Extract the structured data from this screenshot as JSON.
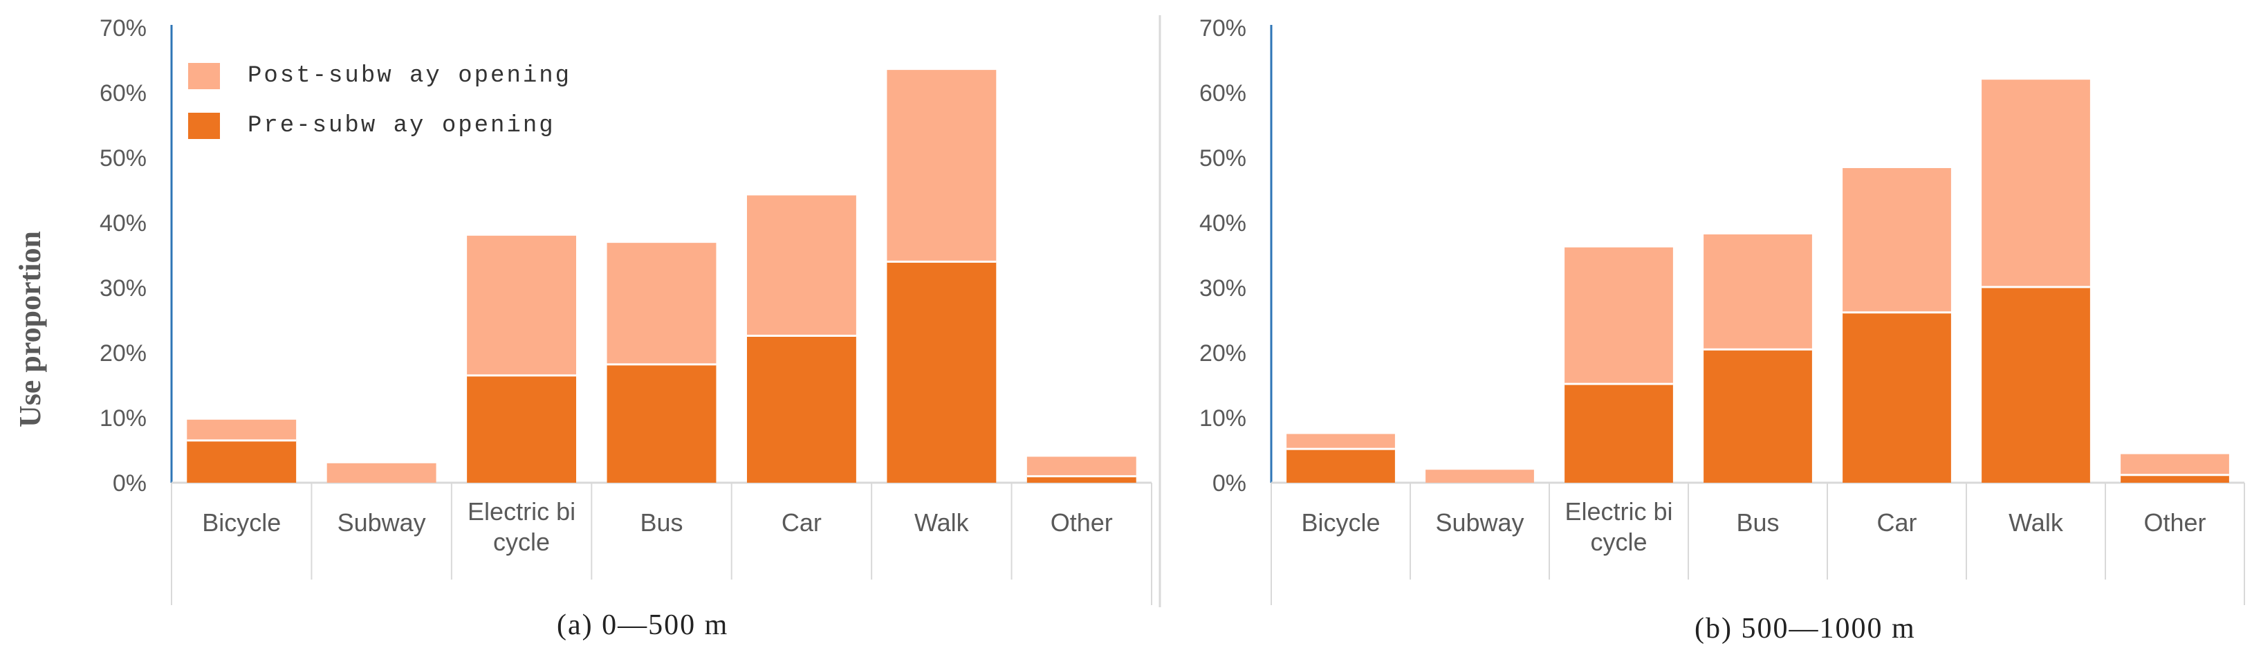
{
  "y_axis_label": "Use proportion",
  "colors": {
    "post": "#FDAE8A",
    "pre": "#ED7420",
    "axis": "#2E75B6",
    "grid": "#D9D9D9",
    "tick_text": "#595959"
  },
  "legend": [
    {
      "label": "Post-subw ay opening",
      "color": "#FDAE8A"
    },
    {
      "label": "Pre-subw ay opening",
      "color": "#ED7420"
    }
  ],
  "chart_data": [
    {
      "type": "bar",
      "stacked": true,
      "caption": "(a) 0—500 m",
      "categories": [
        "Bicycle",
        "Subway",
        "Electric bi cycle",
        "Bus",
        "Car",
        "Walk",
        "Other"
      ],
      "y_ticks": [
        "0%",
        "10%",
        "20%",
        "30%",
        "40%",
        "50%",
        "60%",
        "70%"
      ],
      "ylim": [
        0,
        70
      ],
      "series": [
        {
          "name": "Pre-subw ay opening",
          "values": [
            6.5,
            0,
            16.5,
            18.2,
            22.6,
            34.0,
            1.0
          ]
        },
        {
          "name": "Post-subw ay opening",
          "values": [
            3.2,
            3.0,
            21.5,
            18.7,
            21.6,
            29.5,
            3.0
          ]
        }
      ]
    },
    {
      "type": "bar",
      "stacked": true,
      "caption": "(b) 500—1000 m",
      "categories": [
        "Bicycle",
        "Subway",
        "Electric bi cycle",
        "Bus",
        "Car",
        "Walk",
        "Other"
      ],
      "y_ticks": [
        "0%",
        "10%",
        "20%",
        "30%",
        "40%",
        "50%",
        "60%",
        "70%"
      ],
      "ylim": [
        0,
        70
      ],
      "series": [
        {
          "name": "Pre-subw ay opening",
          "values": [
            5.2,
            0,
            15.2,
            20.5,
            26.2,
            30.1,
            1.2
          ]
        },
        {
          "name": "Post-subw ay opening",
          "values": [
            2.3,
            2.0,
            21.0,
            17.7,
            22.2,
            31.9,
            3.2
          ]
        }
      ]
    }
  ]
}
